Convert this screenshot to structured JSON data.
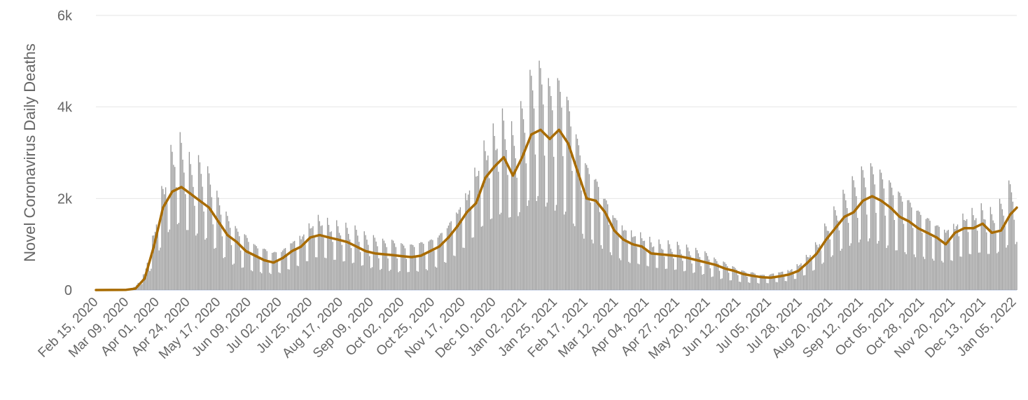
{
  "chart_data": {
    "type": "bar",
    "title": "",
    "ylabel": "Novel Coronavirus Daily Deaths",
    "xlabel": "",
    "ylim": [
      0,
      6000
    ],
    "yticks": [
      {
        "value": 0,
        "label": "0"
      },
      {
        "value": 2000,
        "label": "2k"
      },
      {
        "value": 4000,
        "label": "4k"
      },
      {
        "value": 6000,
        "label": "6k"
      }
    ],
    "x_start_date": "2020-02-15",
    "x_end_date": "2022-01-15",
    "xtick_labels": [
      "Feb 15, 2020",
      "Mar 09, 2020",
      "Apr 01, 2020",
      "Apr 24, 2020",
      "May 17, 2020",
      "Jun 09, 2020",
      "Jul 02, 2020",
      "Jul 25, 2020",
      "Aug 17, 2020",
      "Sep 09, 2020",
      "Oct 02, 2020",
      "Oct 25, 2020",
      "Nov 17, 2020",
      "Dec 10, 2020",
      "Jan 02, 2021",
      "Jan 25, 2021",
      "Feb 17, 2021",
      "Mar 12, 2021",
      "Apr 04, 2021",
      "Apr 27, 2021",
      "May 20, 2021",
      "Jun 12, 2021",
      "Jul 05, 2021",
      "Jul 28, 2021",
      "Aug 20, 2021",
      "Sep 12, 2021",
      "Oct 05, 2021",
      "Oct 28, 2021",
      "Nov 20, 2021",
      "Dec 13, 2021",
      "Jan 05, 2022"
    ],
    "grid": true,
    "colors": {
      "bars": "#999999",
      "average_line": "#a86b00",
      "grid": "#e6e6e6",
      "text": "#666666"
    },
    "series": [
      {
        "type": "bar",
        "points": [
          [
            "2020-02-15",
            0
          ],
          [
            "2020-03-09",
            20
          ],
          [
            "2020-03-16",
            60
          ],
          [
            "2020-03-23",
            300
          ],
          [
            "2020-03-30",
            1000
          ],
          [
            "2020-04-06",
            1800
          ],
          [
            "2020-04-13",
            2400
          ],
          [
            "2020-04-20",
            2500
          ],
          [
            "2020-04-27",
            2100
          ],
          [
            "2020-05-04",
            2100
          ],
          [
            "2020-05-11",
            1900
          ],
          [
            "2020-05-18",
            1500
          ],
          [
            "2020-05-25",
            1200
          ],
          [
            "2020-06-01",
            1000
          ],
          [
            "2020-06-08",
            900
          ],
          [
            "2020-06-15",
            750
          ],
          [
            "2020-06-22",
            700
          ],
          [
            "2020-06-29",
            650
          ],
          [
            "2020-07-06",
            700
          ],
          [
            "2020-07-13",
            850
          ],
          [
            "2020-07-20",
            950
          ],
          [
            "2020-07-27",
            1150
          ],
          [
            "2020-08-03",
            1250
          ],
          [
            "2020-08-10",
            1150
          ],
          [
            "2020-08-17",
            1100
          ],
          [
            "2020-08-24",
            1050
          ],
          [
            "2020-08-31",
            1000
          ],
          [
            "2020-09-07",
            900
          ],
          [
            "2020-09-14",
            850
          ],
          [
            "2020-09-21",
            800
          ],
          [
            "2020-09-28",
            800
          ],
          [
            "2020-10-05",
            750
          ],
          [
            "2020-10-12",
            750
          ],
          [
            "2020-10-19",
            800
          ],
          [
            "2020-10-26",
            850
          ],
          [
            "2020-11-02",
            950
          ],
          [
            "2020-11-09",
            1150
          ],
          [
            "2020-11-16",
            1400
          ],
          [
            "2020-11-23",
            1700
          ],
          [
            "2020-11-30",
            2100
          ],
          [
            "2020-12-07",
            2500
          ],
          [
            "2020-12-14",
            2700
          ],
          [
            "2020-12-21",
            2900
          ],
          [
            "2020-12-28",
            2600
          ],
          [
            "2021-01-04",
            3000
          ],
          [
            "2021-01-11",
            3500
          ],
          [
            "2021-01-18",
            3600
          ],
          [
            "2021-01-25",
            3300
          ],
          [
            "2021-02-01",
            3400
          ],
          [
            "2021-02-08",
            3100
          ],
          [
            "2021-02-15",
            2500
          ],
          [
            "2021-02-22",
            2100
          ],
          [
            "2021-03-01",
            1900
          ],
          [
            "2021-03-08",
            1600
          ],
          [
            "2021-03-15",
            1300
          ],
          [
            "2021-03-22",
            1100
          ],
          [
            "2021-03-29",
            1000
          ],
          [
            "2021-04-05",
            950
          ],
          [
            "2021-04-12",
            850
          ],
          [
            "2021-04-19",
            800
          ],
          [
            "2021-04-26",
            780
          ],
          [
            "2021-05-03",
            750
          ],
          [
            "2021-05-10",
            700
          ],
          [
            "2021-05-17",
            650
          ],
          [
            "2021-05-24",
            600
          ],
          [
            "2021-05-31",
            500
          ],
          [
            "2021-06-07",
            450
          ],
          [
            "2021-06-14",
            380
          ],
          [
            "2021-06-21",
            320
          ],
          [
            "2021-06-28",
            300
          ],
          [
            "2021-07-05",
            260
          ],
          [
            "2021-07-12",
            280
          ],
          [
            "2021-07-19",
            320
          ],
          [
            "2021-07-26",
            350
          ],
          [
            "2021-08-02",
            450
          ],
          [
            "2021-08-09",
            600
          ],
          [
            "2021-08-16",
            800
          ],
          [
            "2021-08-23",
            1100
          ],
          [
            "2021-08-30",
            1350
          ],
          [
            "2021-09-06",
            1600
          ],
          [
            "2021-09-13",
            1800
          ],
          [
            "2021-09-20",
            1950
          ],
          [
            "2021-09-27",
            2000
          ],
          [
            "2021-10-04",
            1900
          ],
          [
            "2021-10-11",
            1750
          ],
          [
            "2021-10-18",
            1600
          ],
          [
            "2021-10-25",
            1500
          ],
          [
            "2021-11-01",
            1350
          ],
          [
            "2021-11-08",
            1250
          ],
          [
            "2021-11-15",
            1150
          ],
          [
            "2021-11-22",
            1050
          ],
          [
            "2021-11-29",
            1150
          ],
          [
            "2021-12-06",
            1300
          ],
          [
            "2021-12-13",
            1350
          ],
          [
            "2021-12-20",
            1400
          ],
          [
            "2021-12-27",
            1300
          ],
          [
            "2022-01-03",
            1450
          ],
          [
            "2022-01-10",
            1750
          ],
          [
            "2022-01-15",
            1800
          ]
        ]
      },
      {
        "type": "line",
        "points": [
          [
            "2020-02-15",
            0
          ],
          [
            "2020-03-09",
            5
          ],
          [
            "2020-03-16",
            30
          ],
          [
            "2020-03-23",
            250
          ],
          [
            "2020-03-30",
            950
          ],
          [
            "2020-04-06",
            1800
          ],
          [
            "2020-04-13",
            2150
          ],
          [
            "2020-04-20",
            2250
          ],
          [
            "2020-04-27",
            2100
          ],
          [
            "2020-05-04",
            1950
          ],
          [
            "2020-05-11",
            1800
          ],
          [
            "2020-05-18",
            1500
          ],
          [
            "2020-05-25",
            1200
          ],
          [
            "2020-06-01",
            1050
          ],
          [
            "2020-06-08",
            850
          ],
          [
            "2020-06-15",
            750
          ],
          [
            "2020-06-22",
            650
          ],
          [
            "2020-06-29",
            600
          ],
          [
            "2020-07-06",
            700
          ],
          [
            "2020-07-13",
            850
          ],
          [
            "2020-07-20",
            950
          ],
          [
            "2020-07-27",
            1150
          ],
          [
            "2020-08-03",
            1200
          ],
          [
            "2020-08-10",
            1150
          ],
          [
            "2020-08-17",
            1100
          ],
          [
            "2020-08-24",
            1050
          ],
          [
            "2020-08-31",
            950
          ],
          [
            "2020-09-07",
            850
          ],
          [
            "2020-09-14",
            800
          ],
          [
            "2020-09-21",
            780
          ],
          [
            "2020-09-28",
            760
          ],
          [
            "2020-10-05",
            740
          ],
          [
            "2020-10-12",
            720
          ],
          [
            "2020-10-19",
            750
          ],
          [
            "2020-10-26",
            850
          ],
          [
            "2020-11-02",
            950
          ],
          [
            "2020-11-09",
            1150
          ],
          [
            "2020-11-16",
            1400
          ],
          [
            "2020-11-23",
            1700
          ],
          [
            "2020-11-30",
            1900
          ],
          [
            "2020-12-07",
            2450
          ],
          [
            "2020-12-14",
            2700
          ],
          [
            "2020-12-21",
            2900
          ],
          [
            "2020-12-28",
            2500
          ],
          [
            "2021-01-04",
            2900
          ],
          [
            "2021-01-11",
            3400
          ],
          [
            "2021-01-18",
            3500
          ],
          [
            "2021-01-25",
            3300
          ],
          [
            "2021-02-01",
            3500
          ],
          [
            "2021-02-08",
            3200
          ],
          [
            "2021-02-15",
            2600
          ],
          [
            "2021-02-22",
            2000
          ],
          [
            "2021-03-01",
            1950
          ],
          [
            "2021-03-08",
            1700
          ],
          [
            "2021-03-15",
            1300
          ],
          [
            "2021-03-22",
            1100
          ],
          [
            "2021-03-29",
            1000
          ],
          [
            "2021-04-05",
            950
          ],
          [
            "2021-04-12",
            800
          ],
          [
            "2021-04-19",
            780
          ],
          [
            "2021-04-26",
            760
          ],
          [
            "2021-05-03",
            740
          ],
          [
            "2021-05-10",
            700
          ],
          [
            "2021-05-17",
            650
          ],
          [
            "2021-05-24",
            600
          ],
          [
            "2021-05-31",
            550
          ],
          [
            "2021-06-07",
            470
          ],
          [
            "2021-06-14",
            420
          ],
          [
            "2021-06-21",
            350
          ],
          [
            "2021-06-28",
            310
          ],
          [
            "2021-07-05",
            280
          ],
          [
            "2021-07-12",
            270
          ],
          [
            "2021-07-19",
            300
          ],
          [
            "2021-07-26",
            340
          ],
          [
            "2021-08-02",
            420
          ],
          [
            "2021-08-09",
            600
          ],
          [
            "2021-08-16",
            800
          ],
          [
            "2021-08-23",
            1100
          ],
          [
            "2021-08-30",
            1350
          ],
          [
            "2021-09-06",
            1600
          ],
          [
            "2021-09-13",
            1700
          ],
          [
            "2021-09-20",
            1950
          ],
          [
            "2021-09-27",
            2050
          ],
          [
            "2021-10-04",
            1950
          ],
          [
            "2021-10-11",
            1800
          ],
          [
            "2021-10-18",
            1600
          ],
          [
            "2021-10-25",
            1500
          ],
          [
            "2021-11-01",
            1350
          ],
          [
            "2021-11-08",
            1250
          ],
          [
            "2021-11-15",
            1150
          ],
          [
            "2021-11-22",
            1000
          ],
          [
            "2021-11-29",
            1250
          ],
          [
            "2021-12-06",
            1350
          ],
          [
            "2021-12-13",
            1350
          ],
          [
            "2021-12-20",
            1450
          ],
          [
            "2021-12-27",
            1250
          ],
          [
            "2022-01-03",
            1300
          ],
          [
            "2022-01-10",
            1650
          ],
          [
            "2022-01-15",
            1800
          ]
        ]
      }
    ]
  }
}
